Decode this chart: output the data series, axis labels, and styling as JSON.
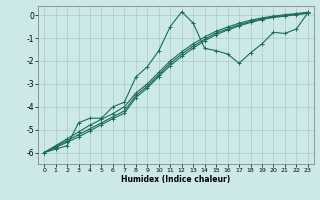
{
  "xlabel": "Humidex (Indice chaleur)",
  "xlim": [
    -0.5,
    23.5
  ],
  "ylim": [
    -6.5,
    0.4
  ],
  "xticks": [
    0,
    1,
    2,
    3,
    4,
    5,
    6,
    7,
    8,
    9,
    10,
    11,
    12,
    13,
    14,
    15,
    16,
    17,
    18,
    19,
    20,
    21,
    22,
    23
  ],
  "yticks": [
    0,
    -1,
    -2,
    -3,
    -4,
    -5,
    -6
  ],
  "bg_color": "#cce8e8",
  "grid_color": "#aacccc",
  "line_color": "#1a6b5a",
  "line1_x": [
    0,
    1,
    2,
    3,
    4,
    5,
    6,
    7,
    8,
    9,
    10,
    11,
    12,
    13,
    14,
    15,
    16,
    17,
    18,
    19,
    20,
    21,
    22,
    23
  ],
  "line1_y": [
    -6.0,
    -5.85,
    -5.7,
    -4.7,
    -4.5,
    -4.5,
    -4.0,
    -3.8,
    -2.7,
    -2.25,
    -1.55,
    -0.5,
    0.15,
    -0.35,
    -1.45,
    -1.55,
    -1.7,
    -2.1,
    -1.65,
    -1.25,
    -0.75,
    -0.8,
    -0.6,
    0.1
  ],
  "line2_x": [
    0,
    1,
    2,
    3,
    4,
    5,
    6,
    7,
    8,
    9,
    10,
    11,
    12,
    13,
    14,
    15,
    16,
    17,
    18,
    19,
    20,
    21,
    22,
    23
  ],
  "line2_y": [
    -6.0,
    -5.74,
    -5.48,
    -5.22,
    -4.96,
    -4.7,
    -4.44,
    -4.18,
    -3.5,
    -3.1,
    -2.6,
    -2.1,
    -1.7,
    -1.35,
    -1.05,
    -0.78,
    -0.6,
    -0.42,
    -0.28,
    -0.16,
    -0.08,
    -0.02,
    0.04,
    0.1
  ],
  "line3_x": [
    0,
    1,
    2,
    3,
    4,
    5,
    6,
    7,
    8,
    9,
    10,
    11,
    12,
    13,
    14,
    15,
    16,
    17,
    18,
    19,
    20,
    21,
    22,
    23
  ],
  "line3_y": [
    -6.0,
    -5.7,
    -5.4,
    -5.1,
    -4.8,
    -4.55,
    -4.3,
    -4.0,
    -3.4,
    -3.0,
    -2.5,
    -2.0,
    -1.6,
    -1.25,
    -0.95,
    -0.7,
    -0.52,
    -0.35,
    -0.22,
    -0.12,
    -0.04,
    0.02,
    0.07,
    0.13
  ],
  "line4_x": [
    0,
    1,
    2,
    3,
    4,
    5,
    6,
    7,
    8,
    9,
    10,
    11,
    12,
    13,
    14,
    15,
    16,
    17,
    18,
    19,
    20,
    21,
    22,
    23
  ],
  "line4_y": [
    -6.0,
    -5.78,
    -5.55,
    -5.32,
    -5.05,
    -4.78,
    -4.52,
    -4.28,
    -3.6,
    -3.18,
    -2.68,
    -2.2,
    -1.8,
    -1.44,
    -1.12,
    -0.85,
    -0.65,
    -0.47,
    -0.32,
    -0.19,
    -0.1,
    -0.04,
    0.02,
    0.08
  ]
}
